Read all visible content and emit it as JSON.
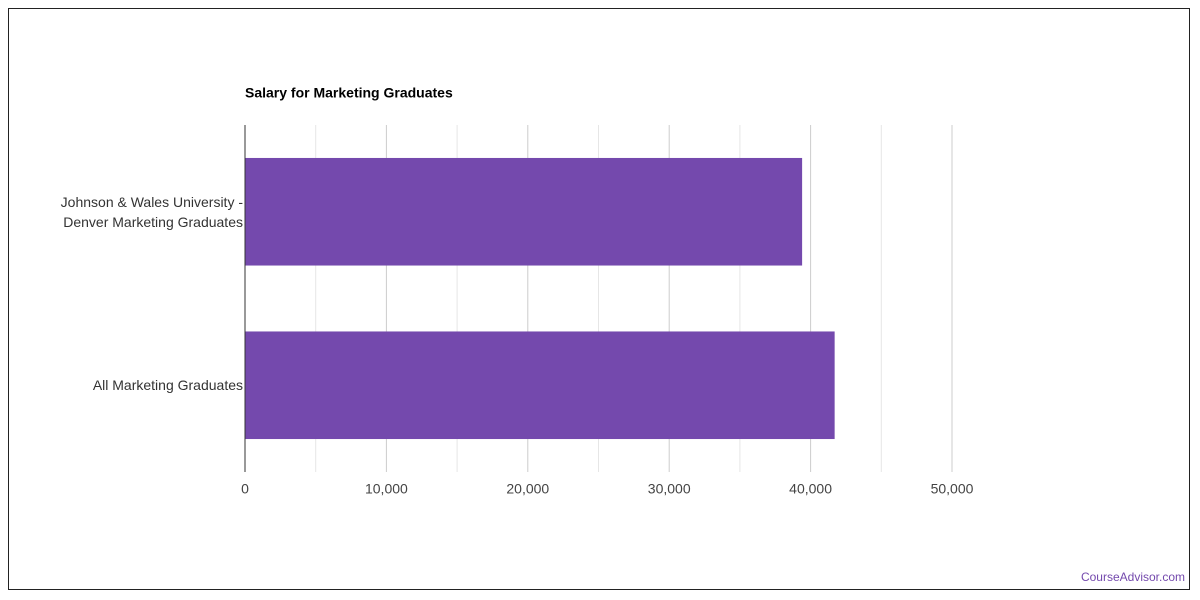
{
  "chart_data": {
    "type": "hbar",
    "title": "Salary for Marketing Graduates",
    "categories": [
      "Johnson & Wales University - Denver Marketing Graduates",
      "All Marketing Graduates"
    ],
    "values": [
      39400,
      41700
    ],
    "color": "#7449ad",
    "xlim": [
      0,
      50000
    ],
    "xticks": [
      0,
      {
        "value": 10000,
        "label": "10,000"
      },
      {
        "value": 20000,
        "label": "20,000"
      },
      {
        "value": 30000,
        "label": "30,000"
      },
      {
        "value": 40000,
        "label": "40,000"
      },
      {
        "value": 50000,
        "label": "50,000"
      }
    ],
    "minor_xticks": [
      5000,
      15000,
      25000,
      35000,
      45000
    ],
    "grid": true,
    "credit": "CourseAdvisor.com"
  }
}
